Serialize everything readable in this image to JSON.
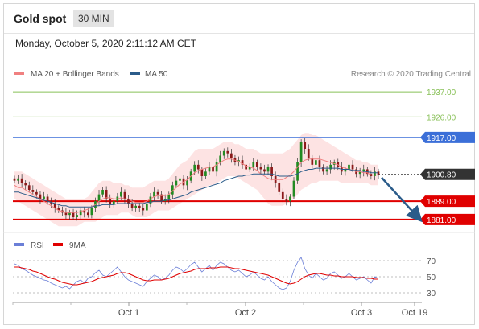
{
  "header": {
    "title": "Gold spot",
    "interval": "30 MIN"
  },
  "datetime": "Monday, October 5, 2020 2:11:12 AM CET",
  "legend": {
    "main": [
      {
        "label": "MA 20 + Bollinger Bands",
        "color": "#f08080"
      },
      {
        "label": "MA 50",
        "color": "#2b5c8a"
      }
    ],
    "credit": "Research © 2020 Trading Central",
    "rsi": [
      {
        "label": "RSI",
        "color": "#6b7fd7"
      },
      {
        "label": "9MA",
        "color": "#e00000"
      }
    ]
  },
  "colors": {
    "resistance": "#88c057",
    "pivot": "#3b6fd8",
    "support": "#e00000",
    "price": "#333333",
    "bollinger_fill": "#fde0e0",
    "candle_up": "#228b22",
    "candle_down": "#8b1a1a",
    "arrow": "#2b5c8a"
  },
  "chart_data": {
    "type": "candlestick",
    "instrument": "Gold spot",
    "ylim": [
      1876,
      1942
    ],
    "levels": [
      {
        "value": 1937.0,
        "label": "1937.00",
        "kind": "resistance"
      },
      {
        "value": 1926.0,
        "label": "1926.00",
        "kind": "resistance"
      },
      {
        "value": 1917.0,
        "label": "1917.00",
        "kind": "pivot"
      },
      {
        "value": 1900.8,
        "label": "1900.80",
        "kind": "price"
      },
      {
        "value": 1889.0,
        "label": "1889.00",
        "kind": "support"
      },
      {
        "value": 1881.0,
        "label": "1881.00",
        "kind": "support"
      }
    ],
    "x_ticks": [
      "Oct 1",
      "Oct 2",
      "Oct 3",
      "Oct 19"
    ],
    "close": [
      1898,
      1899,
      1897,
      1896,
      1894,
      1893,
      1892,
      1890,
      1891,
      1889,
      1888,
      1886,
      1885,
      1884,
      1883,
      1884,
      1882,
      1883,
      1885,
      1884,
      1883,
      1886,
      1889,
      1892,
      1894,
      1890,
      1888,
      1889,
      1891,
      1893,
      1890,
      1888,
      1886,
      1887,
      1886,
      1885,
      1888,
      1891,
      1893,
      1892,
      1889,
      1890,
      1892,
      1896,
      1898,
      1899,
      1896,
      1898,
      1902,
      1905,
      1903,
      1900,
      1902,
      1904,
      1902,
      1906,
      1909,
      1911,
      1910,
      1908,
      1906,
      1907,
      1905,
      1903,
      1904,
      1906,
      1904,
      1903,
      1902,
      1904,
      1900,
      1897,
      1893,
      1890,
      1889,
      1891,
      1898,
      1906,
      1915,
      1912,
      1908,
      1905,
      1907,
      1904,
      1902,
      1903,
      1905,
      1906,
      1904,
      1902,
      1903,
      1905,
      1903,
      1901,
      1902,
      1903,
      1901,
      1900,
      1902,
      1900.8
    ],
    "bollinger_upper": [
      1902,
      1902,
      1902,
      1901,
      1900,
      1899,
      1898,
      1897,
      1896,
      1895,
      1894,
      1893,
      1892,
      1891,
      1890,
      1890,
      1890,
      1890,
      1890,
      1890,
      1891,
      1893,
      1895,
      1897,
      1898,
      1898,
      1898,
      1897,
      1897,
      1897,
      1896,
      1896,
      1895,
      1895,
      1895,
      1895,
      1896,
      1897,
      1898,
      1898,
      1898,
      1898,
      1899,
      1901,
      1903,
      1905,
      1906,
      1907,
      1909,
      1911,
      1912,
      1912,
      1912,
      1912,
      1912,
      1913,
      1914,
      1915,
      1915,
      1915,
      1914,
      1914,
      1913,
      1912,
      1912,
      1912,
      1911,
      1910,
      1910,
      1910,
      1910,
      1910,
      1910,
      1910,
      1911,
      1912,
      1914,
      1916,
      1918,
      1919,
      1919,
      1918,
      1918,
      1917,
      1916,
      1915,
      1914,
      1913,
      1912,
      1911,
      1910,
      1909,
      1908,
      1907,
      1907,
      1906,
      1906,
      1905,
      1905,
      1905
    ],
    "bollinger_lower": [
      1890,
      1889,
      1888,
      1887,
      1886,
      1885,
      1884,
      1883,
      1882,
      1881,
      1880,
      1879,
      1878,
      1878,
      1878,
      1878,
      1878,
      1878,
      1879,
      1880,
      1880,
      1880,
      1880,
      1881,
      1882,
      1883,
      1883,
      1883,
      1883,
      1884,
      1884,
      1884,
      1883,
      1882,
      1882,
      1882,
      1882,
      1883,
      1884,
      1885,
      1885,
      1885,
      1885,
      1886,
      1887,
      1888,
      1889,
      1890,
      1891,
      1892,
      1893,
      1894,
      1895,
      1896,
      1896,
      1897,
      1898,
      1899,
      1900,
      1900,
      1900,
      1899,
      1898,
      1897,
      1896,
      1895,
      1894,
      1892,
      1890,
      1888,
      1887,
      1887,
      1887,
      1887,
      1888,
      1889,
      1890,
      1892,
      1894,
      1895,
      1896,
      1897,
      1897,
      1898,
      1898,
      1898,
      1898,
      1898,
      1898,
      1897,
      1897,
      1897,
      1897,
      1897,
      1897,
      1897,
      1897,
      1896,
      1896,
      1896
    ],
    "ma20": [
      1896,
      1895,
      1895,
      1894,
      1893,
      1892,
      1891,
      1890,
      1889,
      1888,
      1887,
      1886,
      1885,
      1884.5,
      1884,
      1884,
      1884,
      1884,
      1884.5,
      1885,
      1885.5,
      1886.5,
      1887.5,
      1889,
      1890,
      1890.5,
      1890.5,
      1890,
      1890,
      1890.5,
      1890,
      1890,
      1889,
      1888.5,
      1888.5,
      1888.5,
      1889,
      1890,
      1891,
      1891.5,
      1891.5,
      1891.5,
      1892,
      1893.5,
      1895,
      1896.5,
      1897.5,
      1898.5,
      1900,
      1901.5,
      1902.5,
      1903,
      1903.5,
      1904,
      1904,
      1905,
      1906,
      1907,
      1907.5,
      1907.5,
      1907,
      1906.5,
      1905.5,
      1904.5,
      1904,
      1903.5,
      1902.5,
      1901,
      1900,
      1899,
      1898.5,
      1898.5,
      1898.5,
      1898.5,
      1899.5,
      1900.5,
      1902,
      1904,
      1906,
      1907,
      1907.5,
      1907.5,
      1907.5,
      1907.5,
      1907,
      1906.5,
      1906,
      1905.5,
      1905,
      1904,
      1903.5,
      1903,
      1902.5,
      1902,
      1902,
      1901.5,
      1901.5,
      1900.5,
      1900.5,
      1900.5
    ],
    "ma50": [
      1893,
      1893,
      1892.5,
      1892,
      1891.5,
      1891,
      1890.5,
      1890,
      1889.5,
      1889,
      1888.5,
      1888,
      1887.5,
      1887,
      1887,
      1886.5,
      1886.5,
      1886.5,
      1886.5,
      1886.5,
      1886.5,
      1886.5,
      1887,
      1887,
      1887.5,
      1887.5,
      1887.5,
      1887.5,
      1888,
      1888,
      1888,
      1888,
      1888,
      1888,
      1888,
      1888,
      1888.5,
      1888.5,
      1889,
      1889,
      1889,
      1889.5,
      1889.5,
      1890,
      1890.5,
      1891,
      1891.5,
      1892,
      1893,
      1893.5,
      1894,
      1894.5,
      1895,
      1895.5,
      1896,
      1896.5,
      1897,
      1898,
      1898.5,
      1899,
      1899.5,
      1900,
      1900,
      1900.5,
      1900.5,
      1901,
      1901,
      1901,
      1901,
      1901,
      1901,
      1900.5,
      1900,
      1900,
      1900,
      1900,
      1900.5,
      1901,
      1902,
      1902.5,
      1903,
      1903,
      1903.5,
      1903.5,
      1903.5,
      1903.5,
      1903.5,
      1903.5,
      1903.5,
      1903,
      1903,
      1903,
      1902.5,
      1902.5,
      1902.5,
      1902,
      1902,
      1901.5,
      1901.5,
      1901.5
    ],
    "rsi": {
      "ylim": [
        22,
        78
      ],
      "ticks": [
        70,
        50,
        30
      ],
      "rsi": [
        66,
        64,
        60,
        58,
        55,
        52,
        50,
        48,
        46,
        45,
        42,
        40,
        38,
        36,
        38,
        35,
        40,
        44,
        46,
        42,
        48,
        50,
        55,
        58,
        52,
        50,
        54,
        58,
        62,
        56,
        50,
        46,
        44,
        42,
        40,
        38,
        44,
        48,
        52,
        50,
        46,
        48,
        52,
        58,
        62,
        60,
        56,
        60,
        65,
        68,
        62,
        56,
        60,
        64,
        58,
        64,
        68,
        66,
        62,
        58,
        56,
        58,
        54,
        50,
        52,
        56,
        52,
        48,
        46,
        50,
        44,
        40,
        36,
        34,
        36,
        44,
        58,
        68,
        74,
        60,
        52,
        48,
        54,
        50,
        46,
        48,
        54,
        56,
        52,
        48,
        50,
        54,
        50,
        46,
        48,
        50,
        46,
        42,
        50,
        48
      ],
      "ma9": [
        62,
        62,
        61,
        60,
        59,
        57,
        56,
        54,
        52,
        50,
        48,
        47,
        45,
        43,
        42,
        41,
        40,
        40,
        41,
        42,
        43,
        44,
        46,
        48,
        49,
        50,
        51,
        52,
        54,
        55,
        55,
        54,
        52,
        50,
        48,
        46,
        45,
        45,
        46,
        46,
        46,
        47,
        48,
        50,
        52,
        54,
        55,
        56,
        57,
        59,
        60,
        60,
        60,
        61,
        61,
        61,
        62,
        62,
        62,
        61,
        60,
        60,
        59,
        58,
        57,
        56,
        55,
        54,
        53,
        52,
        50,
        48,
        46,
        44,
        42,
        41,
        42,
        44,
        47,
        50,
        52,
        53,
        54,
        54,
        53,
        52,
        52,
        51,
        51,
        50,
        50,
        50,
        50,
        49,
        49,
        49,
        48,
        48,
        47,
        47
      ]
    }
  }
}
